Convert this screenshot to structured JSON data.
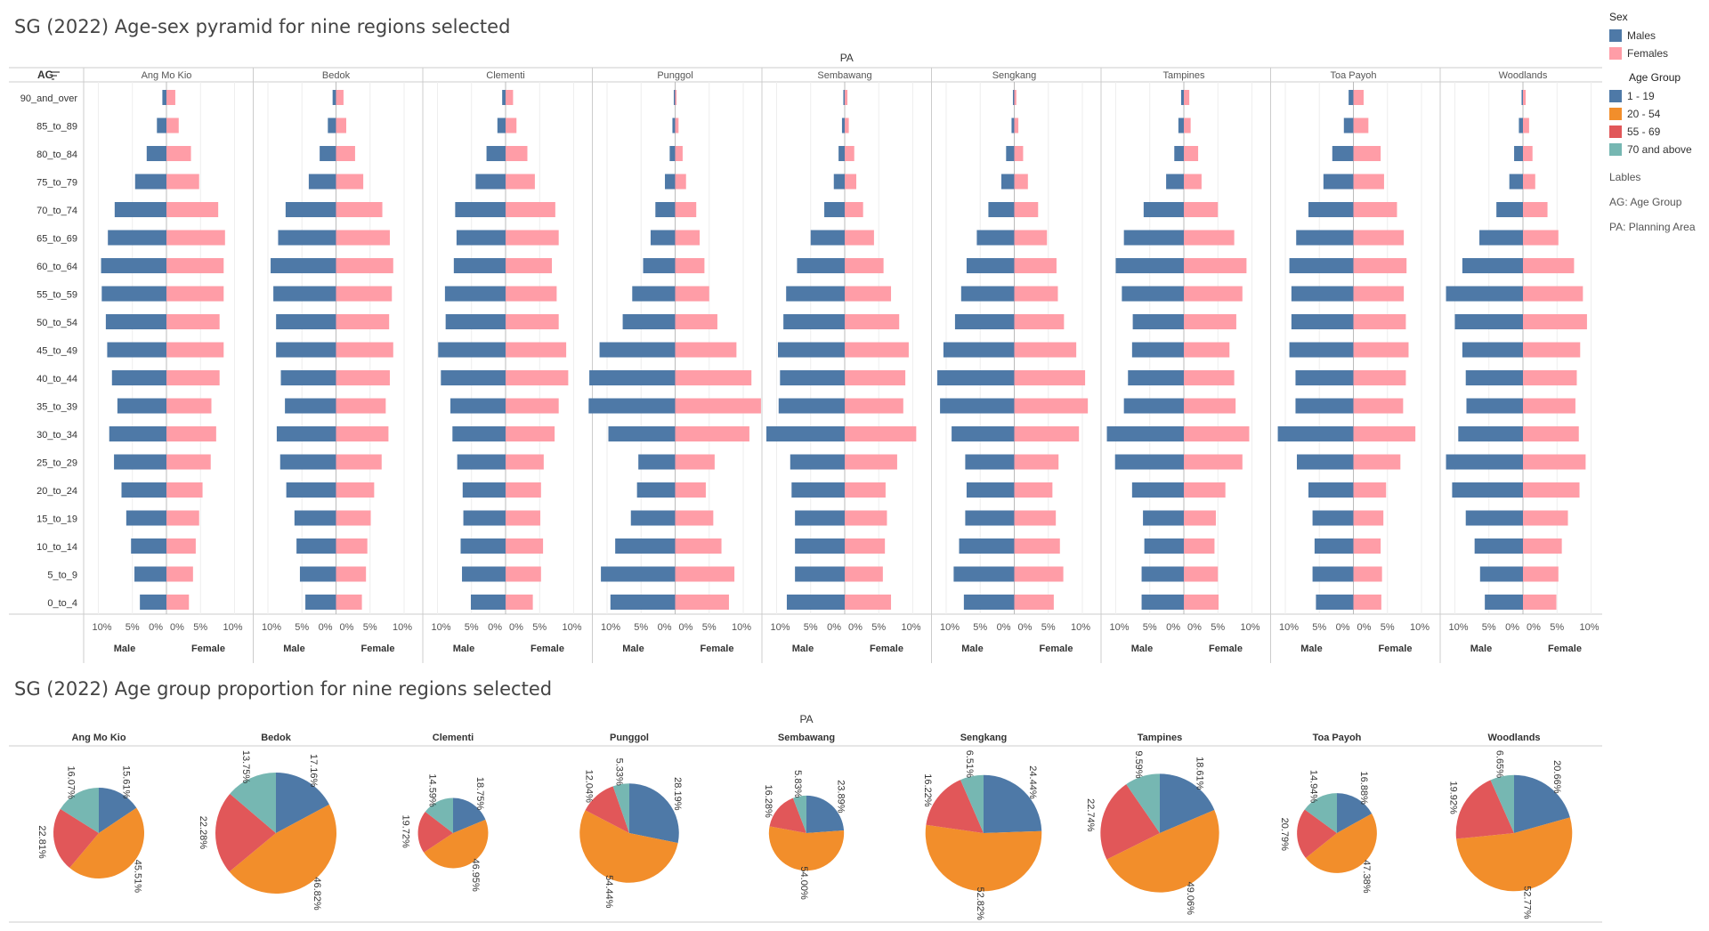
{
  "titles": {
    "pyramid": "SG (2022) Age-sex pyramid for nine regions selected",
    "pie": "SG (2022) Age group proportion for nine regions selected"
  },
  "legend": {
    "sex_title": "Sex",
    "sex_items": [
      {
        "label": "Males",
        "color": "#4e79a7"
      },
      {
        "label": "Females",
        "color": "#ff9da7"
      }
    ],
    "age_title": "Age Group",
    "age_items": [
      {
        "label": "1 - 19",
        "color": "#4e79a7"
      },
      {
        "label": "20 - 54",
        "color": "#f28e2b"
      },
      {
        "label": "55 - 69",
        "color": "#e15759"
      },
      {
        "label": "70 and above",
        "color": "#76b7b2"
      }
    ],
    "labels_title": "Lables",
    "label_ag": "AG: Age Group",
    "label_pa": "PA: Planning Area"
  },
  "chart_data": [
    {
      "type": "bar",
      "title": "SG (2022) Age-sex pyramid for nine regions selected",
      "column_header": "PA",
      "row_header": "AG",
      "male_label": "Male",
      "female_label": "Female",
      "axis_ticks": [
        "10%",
        "5%",
        "0%",
        "0%",
        "5%",
        "10%"
      ],
      "xlim_percent": [
        0,
        11.5
      ],
      "categories": [
        "90_and_over",
        "85_to_89",
        "80_to_84",
        "75_to_79",
        "70_to_74",
        "65_to_69",
        "60_to_64",
        "55_to_59",
        "50_to_54",
        "45_to_49",
        "40_to_44",
        "35_to_39",
        "30_to_34",
        "25_to_29",
        "20_to_24",
        "15_to_19",
        "10_to_14",
        "5_to_9",
        "0_to_4"
      ],
      "regions": [
        {
          "name": "Ang Mo Kio",
          "male": [
            0.6,
            1.4,
            2.9,
            4.6,
            7.6,
            8.6,
            9.6,
            9.5,
            8.9,
            8.7,
            8.0,
            7.2,
            8.4,
            7.7,
            6.6,
            5.9,
            5.2,
            4.7,
            3.9
          ],
          "female": [
            1.3,
            1.8,
            3.6,
            4.8,
            7.6,
            8.6,
            8.4,
            8.4,
            7.8,
            8.4,
            7.8,
            6.6,
            7.3,
            6.5,
            5.3,
            4.8,
            4.3,
            3.9,
            3.3
          ]
        },
        {
          "name": "Bedok",
          "male": [
            0.5,
            1.2,
            2.4,
            4.0,
            7.4,
            8.5,
            9.6,
            9.2,
            8.8,
            8.8,
            8.1,
            7.5,
            8.7,
            8.2,
            7.3,
            6.1,
            5.8,
            5.3,
            4.5
          ],
          "female": [
            1.1,
            1.5,
            2.8,
            4.0,
            6.8,
            7.9,
            8.4,
            8.2,
            7.8,
            8.4,
            7.9,
            7.3,
            7.7,
            6.7,
            5.6,
            5.1,
            4.6,
            4.4,
            3.8
          ]
        },
        {
          "name": "Clementi",
          "male": [
            0.5,
            1.2,
            2.8,
            4.4,
            7.4,
            7.2,
            7.6,
            8.9,
            8.8,
            9.9,
            9.5,
            8.1,
            7.8,
            7.1,
            6.3,
            6.2,
            6.6,
            6.4,
            5.1
          ],
          "female": [
            1.1,
            1.6,
            3.2,
            4.3,
            7.3,
            7.8,
            6.8,
            7.5,
            7.8,
            8.9,
            9.2,
            7.8,
            7.2,
            5.6,
            5.2,
            5.1,
            5.5,
            5.2,
            4.0
          ]
        },
        {
          "name": "Punggol",
          "male": [
            0.2,
            0.4,
            0.8,
            1.5,
            2.9,
            3.6,
            4.7,
            6.3,
            7.7,
            11.1,
            12.6,
            12.7,
            9.8,
            5.4,
            5.6,
            6.5,
            8.8,
            10.9,
            9.5
          ],
          "female": [
            0.2,
            0.5,
            1.1,
            1.6,
            3.1,
            3.6,
            4.3,
            5.0,
            6.2,
            9.0,
            11.2,
            12.6,
            10.9,
            5.8,
            4.5,
            5.6,
            6.8,
            8.7,
            7.9
          ]
        },
        {
          "name": "Sembawang",
          "male": [
            0.2,
            0.4,
            0.9,
            1.6,
            3.0,
            5.0,
            7.0,
            8.6,
            9.0,
            9.8,
            9.5,
            9.7,
            11.5,
            8.0,
            7.8,
            7.3,
            7.3,
            7.3,
            8.5
          ],
          "female": [
            0.4,
            0.6,
            1.4,
            1.7,
            2.7,
            4.3,
            5.7,
            6.8,
            8.0,
            9.4,
            8.9,
            8.6,
            10.5,
            7.7,
            6.0,
            6.2,
            5.9,
            5.6,
            6.8
          ]
        },
        {
          "name": "Sengkang",
          "male": [
            0.2,
            0.4,
            1.2,
            1.9,
            3.8,
            5.5,
            7.0,
            7.8,
            8.7,
            10.4,
            11.3,
            10.9,
            9.2,
            7.2,
            7.0,
            7.2,
            8.1,
            8.9,
            7.4
          ],
          "female": [
            0.3,
            0.6,
            1.3,
            2.0,
            3.5,
            4.8,
            6.2,
            6.4,
            7.3,
            9.1,
            10.4,
            10.8,
            9.5,
            6.5,
            5.6,
            6.1,
            6.7,
            7.2,
            5.8
          ]
        },
        {
          "name": "Tampines",
          "male": [
            0.4,
            0.8,
            1.4,
            2.6,
            5.9,
            8.8,
            10.0,
            9.1,
            7.5,
            7.6,
            8.2,
            8.8,
            11.3,
            10.1,
            7.6,
            6.0,
            5.8,
            6.2,
            6.2
          ],
          "female": [
            0.8,
            1.0,
            2.1,
            2.6,
            5.0,
            7.4,
            9.2,
            8.6,
            7.7,
            6.7,
            7.4,
            7.6,
            9.6,
            8.6,
            6.1,
            4.7,
            4.5,
            5.0,
            5.1
          ]
        },
        {
          "name": "Toa Payoh",
          "male": [
            0.7,
            1.4,
            3.1,
            4.4,
            6.6,
            8.4,
            9.4,
            9.1,
            9.1,
            9.4,
            8.5,
            8.5,
            11.1,
            8.3,
            6.6,
            6.0,
            5.7,
            6.0,
            5.5
          ],
          "female": [
            1.5,
            2.2,
            4.0,
            4.5,
            6.4,
            7.4,
            7.8,
            7.4,
            7.7,
            8.1,
            7.7,
            7.3,
            9.1,
            6.9,
            4.8,
            4.4,
            4.0,
            4.2,
            4.1
          ]
        },
        {
          "name": "Woodlands",
          "male": [
            0.2,
            0.6,
            1.3,
            2.0,
            3.9,
            6.4,
            8.9,
            11.3,
            10.0,
            8.9,
            8.4,
            8.3,
            9.5,
            11.3,
            10.4,
            8.4,
            7.1,
            6.3,
            5.6
          ],
          "female": [
            0.4,
            0.9,
            1.4,
            1.8,
            3.6,
            5.2,
            7.5,
            8.8,
            9.4,
            8.4,
            7.9,
            7.7,
            8.2,
            9.2,
            8.3,
            6.6,
            5.7,
            5.2,
            4.9
          ]
        }
      ]
    },
    {
      "type": "pie",
      "title": "SG (2022) Age group proportion for nine regions selected",
      "column_header": "PA",
      "age_groups": [
        "1 - 19",
        "20 - 54",
        "55 - 69",
        "70 and above"
      ],
      "regions": [
        {
          "name": "Ang Mo Kio",
          "values": [
            15.61,
            45.51,
            22.81,
            16.07
          ],
          "labels": [
            "15.61%",
            "45.51%",
            "22.81%",
            "16.07%"
          ],
          "size_rel": 0.75
        },
        {
          "name": "Bedok",
          "values": [
            17.16,
            46.82,
            22.28,
            13.75
          ],
          "labels": [
            "17.16%",
            "46.82%",
            "22.28%",
            "13.75%"
          ],
          "size_rel": 1.0
        },
        {
          "name": "Clementi",
          "values": [
            18.75,
            46.95,
            19.72,
            14.59
          ],
          "labels": [
            "18.75%",
            "46.95%",
            "19.72%",
            "14.59%"
          ],
          "size_rel": 0.58
        },
        {
          "name": "Punggol",
          "values": [
            28.19,
            54.44,
            12.04,
            5.33
          ],
          "labels": [
            "28.19%",
            "54.44%",
            "12.04%",
            "5.33%"
          ],
          "size_rel": 0.82
        },
        {
          "name": "Sembawang",
          "values": [
            23.89,
            54.0,
            16.28,
            5.83
          ],
          "labels": [
            "23.89%",
            "54.00%",
            "16.28%",
            "5.83%"
          ],
          "size_rel": 0.62
        },
        {
          "name": "Sengkang",
          "values": [
            24.44,
            52.82,
            16.22,
            6.51
          ],
          "labels": [
            "24.44%",
            "52.82%",
            "16.22%",
            "6.51%"
          ],
          "size_rel": 0.96
        },
        {
          "name": "Tampines",
          "values": [
            18.61,
            49.06,
            22.74,
            9.59
          ],
          "labels": [
            "18.61%",
            "49.06%",
            "22.74%",
            "9.59%"
          ],
          "size_rel": 0.98
        },
        {
          "name": "Toa Payoh",
          "values": [
            16.88,
            47.38,
            20.79,
            14.94
          ],
          "labels": [
            "16.88%",
            "47.38%",
            "20.79%",
            "14.94%"
          ],
          "size_rel": 0.66
        },
        {
          "name": "Woodlands",
          "values": [
            20.66,
            52.77,
            19.92,
            6.65
          ],
          "labels": [
            "20.66%",
            "52.77%",
            "19.92%",
            "6.65%"
          ],
          "size_rel": 0.96
        }
      ]
    }
  ]
}
